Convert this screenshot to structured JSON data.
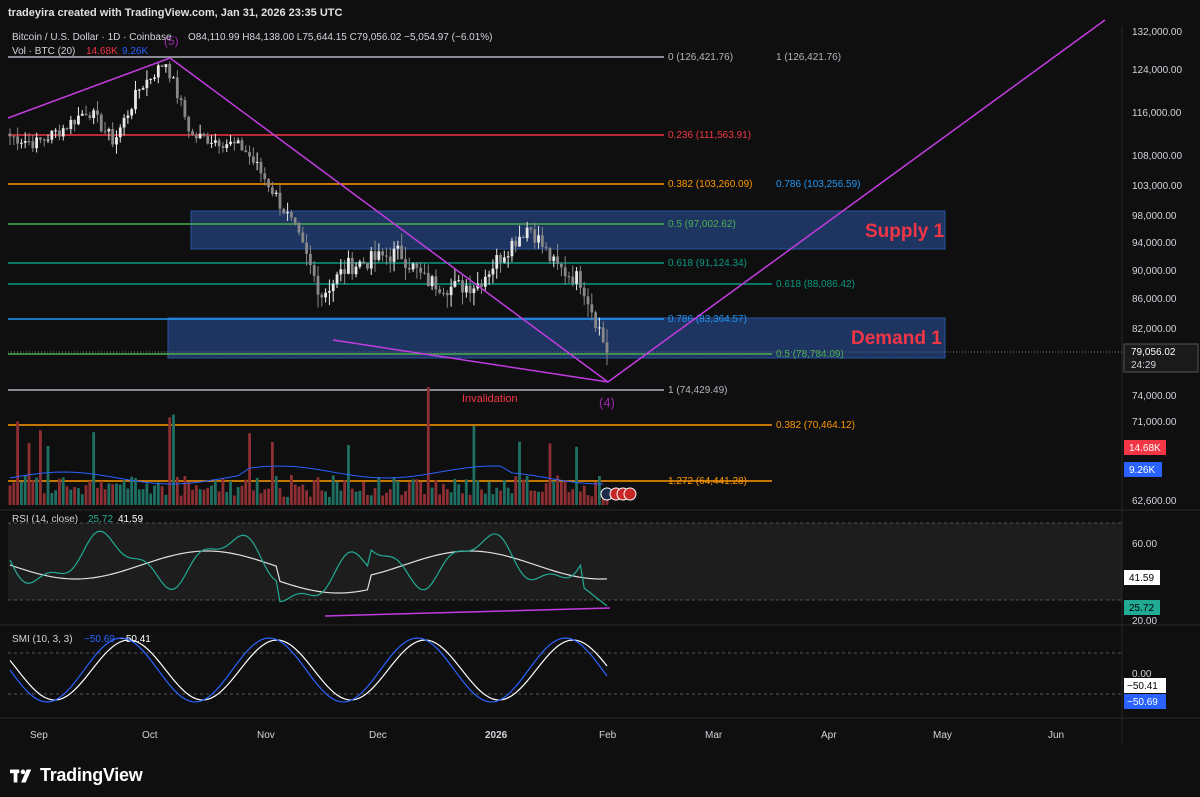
{
  "header": {
    "banner": "tradeyira created with TradingView.com, Jan 31, 2026 23:35 UTC"
  },
  "legend": {
    "symbol": "Bitcoin / U.S. Dollar · 1D · Coinbase",
    "ohlc": "O84,110.99 H84,138.00 L75,644.15 C79,056.02 −5,054.97 (−6.01%)",
    "vol_label": "Vol · BTC (20)",
    "vol_value1": "14.68K",
    "vol_value2": "9.26K"
  },
  "price_axis": {
    "ticks": [
      "132,000.00",
      "124,000.00",
      "116,000.00",
      "108,000.00",
      "103,000.00",
      "98,000.00",
      "94,000.00",
      "90,000.00",
      "86,000.00",
      "82,000.00",
      "74,000.00",
      "71,000.00",
      "62,600.00"
    ],
    "last_price": "79,056.02",
    "countdown": "24:29",
    "vol_badge1": "14.68K",
    "vol_badge2": "9.26K"
  },
  "time_axis": {
    "labels": [
      "Sep",
      "Oct",
      "Nov",
      "Dec",
      "2026",
      "Feb",
      "Mar",
      "Apr",
      "May",
      "Jun"
    ]
  },
  "fib_levels": [
    {
      "label": "0 (126,421.76)",
      "color": "#b2b5be"
    },
    {
      "label": "1 (126,421.76)",
      "color": "#b2b5be"
    },
    {
      "label": "0.236 (111,563.91)",
      "color": "#f23645"
    },
    {
      "label": "0.382 (103,260.09)",
      "color": "#ff9800"
    },
    {
      "label": "0.786 (103,256.59)",
      "color": "#2196f3"
    },
    {
      "label": "0.5 (97,002.62)",
      "color": "#4caf50"
    },
    {
      "label": "0.618 (91,124.34)",
      "color": "#089981"
    },
    {
      "label": "0.618 (88,086.42)",
      "color": "#089981"
    },
    {
      "label": "0.786 (83,364.57)",
      "color": "#2196f3"
    },
    {
      "label": "0.5 (78,784.09)",
      "color": "#4caf50"
    },
    {
      "label": "1 (74,429.49)",
      "color": "#b2b5be"
    },
    {
      "label": "0.382 (70,464.12)",
      "color": "#ff9800"
    },
    {
      "label": "1.272 (64,441.28)",
      "color": "#ff9800"
    }
  ],
  "annotations": {
    "supply": "Supply 1",
    "demand": "Demand 1",
    "invalidation": "Invalidation",
    "wave5": "(5)",
    "wave4": "(4)"
  },
  "rsi": {
    "label": "RSI (14, close)",
    "value1": "25.72",
    "value2": "41.59",
    "ticks": [
      "60.00",
      "20.00"
    ],
    "badge_ma": "41.59",
    "badge_rsi": "25.72"
  },
  "smi": {
    "label": "SMI (10, 3, 3)",
    "value1": "−50.69",
    "value2": "−50.41",
    "ticks": [
      "0.00"
    ],
    "badge1": "−50.41",
    "badge2": "−50.69"
  },
  "footer": {
    "brand": "TradingView"
  },
  "chart_data": {
    "type": "line",
    "description_series": "BTCUSD daily close (approximate)",
    "x": [
      "2025-08-25",
      "2025-09-01",
      "2025-09-08",
      "2025-09-15",
      "2025-09-22",
      "2025-09-29",
      "2025-10-06",
      "2025-10-13",
      "2025-10-20",
      "2025-10-27",
      "2025-11-03",
      "2025-11-10",
      "2025-11-17",
      "2025-11-24",
      "2025-12-01",
      "2025-12-08",
      "2025-12-15",
      "2025-12-22",
      "2025-12-29",
      "2026-01-05",
      "2026-01-12",
      "2026-01-19",
      "2026-01-26",
      "2026-01-31"
    ],
    "series": [
      {
        "name": "",
        "values": [
          111500,
          110200,
          112800,
          116500,
          110500,
          120500,
          125500,
          111500,
          110800,
          109200,
          103000,
          95500,
          86500,
          90500,
          91500,
          92500,
          88500,
          87500,
          88000,
          92500,
          96500,
          90500,
          88500,
          79056
        ]
      }
    ],
    "ylim": [
      62600,
      132000
    ],
    "grid": false
  }
}
